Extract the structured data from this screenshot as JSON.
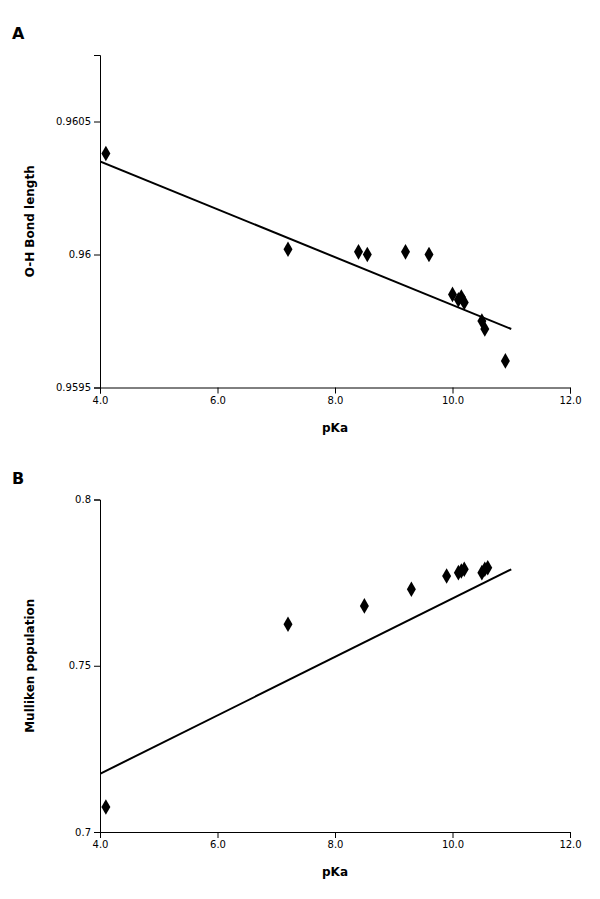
{
  "chart_data": [
    {
      "type": "scatter",
      "title": "A",
      "xlabel": "pKa",
      "ylabel": "O-H Bond length",
      "xlim": [
        4.0,
        12.0
      ],
      "ylim": [
        0.9595,
        0.96075
      ],
      "xticks": [
        {
          "value": 4.0,
          "label": "4.0"
        },
        {
          "value": 6.0,
          "label": "6.0"
        },
        {
          "value": 8.0,
          "label": "8.0"
        },
        {
          "value": 10.0,
          "label": "10.0"
        },
        {
          "value": 12.0,
          "label": "12.0"
        }
      ],
      "yticks": [
        0.9595,
        0.96,
        0.9605
      ],
      "series": [
        {
          "type": "scatter",
          "marker": "diamond",
          "color": "#000000",
          "x": [
            4.1,
            7.2,
            8.4,
            8.55,
            9.2,
            9.6,
            10.0,
            10.1,
            10.15,
            10.2,
            10.5,
            10.55,
            10.9
          ],
          "values": [
            0.96038,
            0.96002,
            0.96001,
            0.96,
            0.96001,
            0.96,
            0.95985,
            0.95983,
            0.95984,
            0.95982,
            0.95975,
            0.95972,
            0.9596
          ]
        },
        {
          "type": "line",
          "color": "#000000",
          "x": [
            4.0,
            11.0
          ],
          "values": [
            0.96035,
            0.95972
          ]
        }
      ]
    },
    {
      "type": "scatter",
      "title": "B",
      "xlabel": "pKa",
      "ylabel": "Mulliken population",
      "xlim": [
        4.0,
        12.0
      ],
      "ylim": [
        0.7,
        0.8
      ],
      "xticks": [
        {
          "value": 4.0,
          "label": "4.0"
        },
        {
          "value": 6.0,
          "label": "6.0"
        },
        {
          "value": 8.0,
          "label": "8.0"
        },
        {
          "value": 10.0,
          "label": "10.0"
        },
        {
          "value": 12.0,
          "label": "12.0"
        }
      ],
      "yticks": [
        0.7,
        0.75,
        0.8
      ],
      "series": [
        {
          "type": "scatter",
          "marker": "diamond",
          "color": "#000000",
          "x": [
            4.1,
            7.2,
            8.5,
            9.3,
            9.9,
            10.1,
            10.15,
            10.2,
            10.5,
            10.55,
            10.6
          ],
          "values": [
            0.7075,
            0.7625,
            0.768,
            0.773,
            0.777,
            0.778,
            0.7785,
            0.779,
            0.778,
            0.779,
            0.7795
          ]
        },
        {
          "type": "line",
          "color": "#000000",
          "x": [
            4.0,
            11.0
          ],
          "values": [
            0.7175,
            0.779
          ]
        }
      ]
    }
  ]
}
